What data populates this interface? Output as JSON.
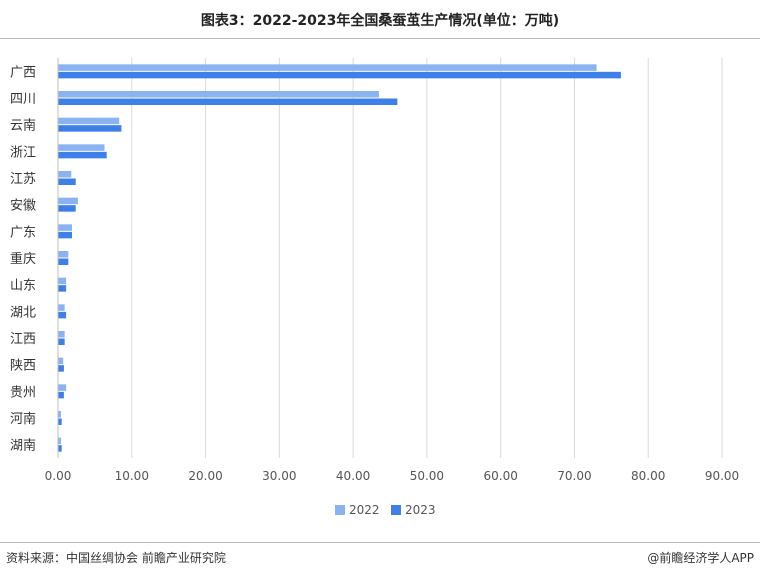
{
  "header": {
    "title": "图表3：2022-2023年全国桑蚕茧生产情况(单位：万吨)"
  },
  "footer": {
    "source": "资料来源：中国丝绸协会 前瞻产业研究院",
    "brand": "@前瞻经济学人APP"
  },
  "chart_data": {
    "type": "bar",
    "orientation": "horizontal",
    "title": "图表3：2022-2023年全国桑蚕茧生产情况(单位：万吨)",
    "categories": [
      "广西",
      "四川",
      "云南",
      "浙江",
      "江苏",
      "安徽",
      "广东",
      "重庆",
      "山东",
      "湖北",
      "江西",
      "陕西",
      "贵州",
      "河南",
      "湖南"
    ],
    "series": [
      {
        "name": "2022",
        "color": "#8ab4f1",
        "values": [
          73.0,
          43.5,
          8.3,
          6.3,
          1.8,
          2.7,
          1.9,
          1.4,
          1.1,
          0.9,
          0.9,
          0.7,
          1.1,
          0.4,
          0.4
        ]
      },
      {
        "name": "2023",
        "color": "#3f7fe8",
        "values": [
          76.3,
          46.0,
          8.6,
          6.6,
          2.4,
          2.4,
          1.9,
          1.4,
          1.1,
          1.1,
          0.9,
          0.8,
          0.8,
          0.5,
          0.5
        ]
      }
    ],
    "xlim": [
      0,
      90
    ],
    "xticks": [
      "0.00",
      "10.00",
      "20.00",
      "30.00",
      "40.00",
      "50.00",
      "60.00",
      "70.00",
      "80.00",
      "90.00"
    ],
    "grid": true,
    "legend_position": "bottom-center",
    "xlabel": "",
    "ylabel": ""
  }
}
